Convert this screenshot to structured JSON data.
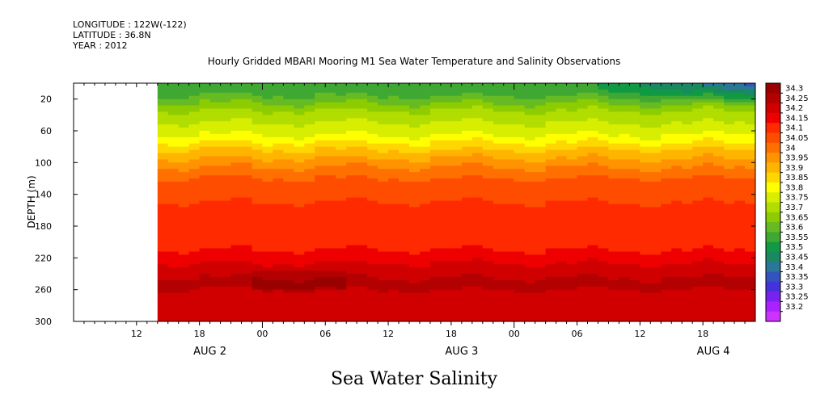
{
  "header": {
    "longitude": "LONGITUDE : 122W(-122)",
    "latitude": "LATITUDE : 36.8N",
    "year": "YEAR : 2012"
  },
  "chart_data": {
    "type": "heatmap",
    "title": "Hourly Gridded MBARI Mooring M1 Sea Water Temperature and Salinity Observations",
    "xlabel": "Sea Water Salinity",
    "ylabel": "DEPTH (m)",
    "ylim": [
      0,
      300
    ],
    "y_inverted": true,
    "y_ticks": [
      20,
      60,
      100,
      140,
      180,
      220,
      260,
      300
    ],
    "x_time_range": [
      "2012-08-02 06:00",
      "2012-08-04 23:00"
    ],
    "data_start": "2012-08-02 14:00",
    "x_ticks": [
      {
        "hour": 6,
        "label": "12"
      },
      {
        "hour": 12,
        "label": "18"
      },
      {
        "hour": 18,
        "label": "00"
      },
      {
        "hour": 24,
        "label": "06"
      },
      {
        "hour": 30,
        "label": "12"
      },
      {
        "hour": 36,
        "label": "18"
      },
      {
        "hour": 42,
        "label": "00"
      },
      {
        "hour": 48,
        "label": "06"
      },
      {
        "hour": 54,
        "label": "12"
      },
      {
        "hour": 60,
        "label": "18"
      }
    ],
    "date_labels": [
      {
        "hour": 13,
        "label": "AUG  2"
      },
      {
        "hour": 37,
        "label": "AUG  3"
      },
      {
        "hour": 61,
        "label": "AUG  4"
      }
    ],
    "colorbar": {
      "levels": [
        "34.3",
        "34.25",
        "34.2",
        "34.15",
        "34.1",
        "34.05",
        "34",
        "33.95",
        "33.9",
        "33.85",
        "33.8",
        "33.75",
        "33.7",
        "33.65",
        "33.6",
        "33.55",
        "33.5",
        "33.45",
        "33.4",
        "33.35",
        "33.3",
        "33.25",
        "33.2"
      ],
      "colors": [
        "#990000",
        "#b30000",
        "#d00000",
        "#ee0000",
        "#ff2a00",
        "#ff4d00",
        "#ff7000",
        "#ff9400",
        "#ffb400",
        "#ffd700",
        "#ffff00",
        "#d8ee00",
        "#b2dd00",
        "#8ccc00",
        "#66bb22",
        "#3fa833",
        "#119944",
        "#1a8860",
        "#2a7799",
        "#3355bb",
        "#4433dd",
        "#7722ee",
        "#aa22ff",
        "#cc33ff"
      ]
    },
    "salinity_profile": [
      {
        "depth": 0,
        "value": 33.55
      },
      {
        "depth": 10,
        "value": 33.57
      },
      {
        "depth": 20,
        "value": 33.62
      },
      {
        "depth": 30,
        "value": 33.68
      },
      {
        "depth": 40,
        "value": 33.72
      },
      {
        "depth": 50,
        "value": 33.75
      },
      {
        "depth": 60,
        "value": 33.78
      },
      {
        "depth": 70,
        "value": 33.82
      },
      {
        "depth": 80,
        "value": 33.88
      },
      {
        "depth": 90,
        "value": 33.93
      },
      {
        "depth": 100,
        "value": 33.97
      },
      {
        "depth": 110,
        "value": 34.02
      },
      {
        "depth": 120,
        "value": 34.05
      },
      {
        "depth": 135,
        "value": 34.08
      },
      {
        "depth": 150,
        "value": 34.1
      },
      {
        "depth": 180,
        "value": 34.1
      },
      {
        "depth": 200,
        "value": 34.13
      },
      {
        "depth": 215,
        "value": 34.16
      },
      {
        "depth": 230,
        "value": 34.21
      },
      {
        "depth": 245,
        "value": 34.25
      },
      {
        "depth": 260,
        "value": 34.25
      },
      {
        "depth": 280,
        "value": 34.24
      },
      {
        "depth": 300,
        "value": 34.23
      }
    ]
  }
}
